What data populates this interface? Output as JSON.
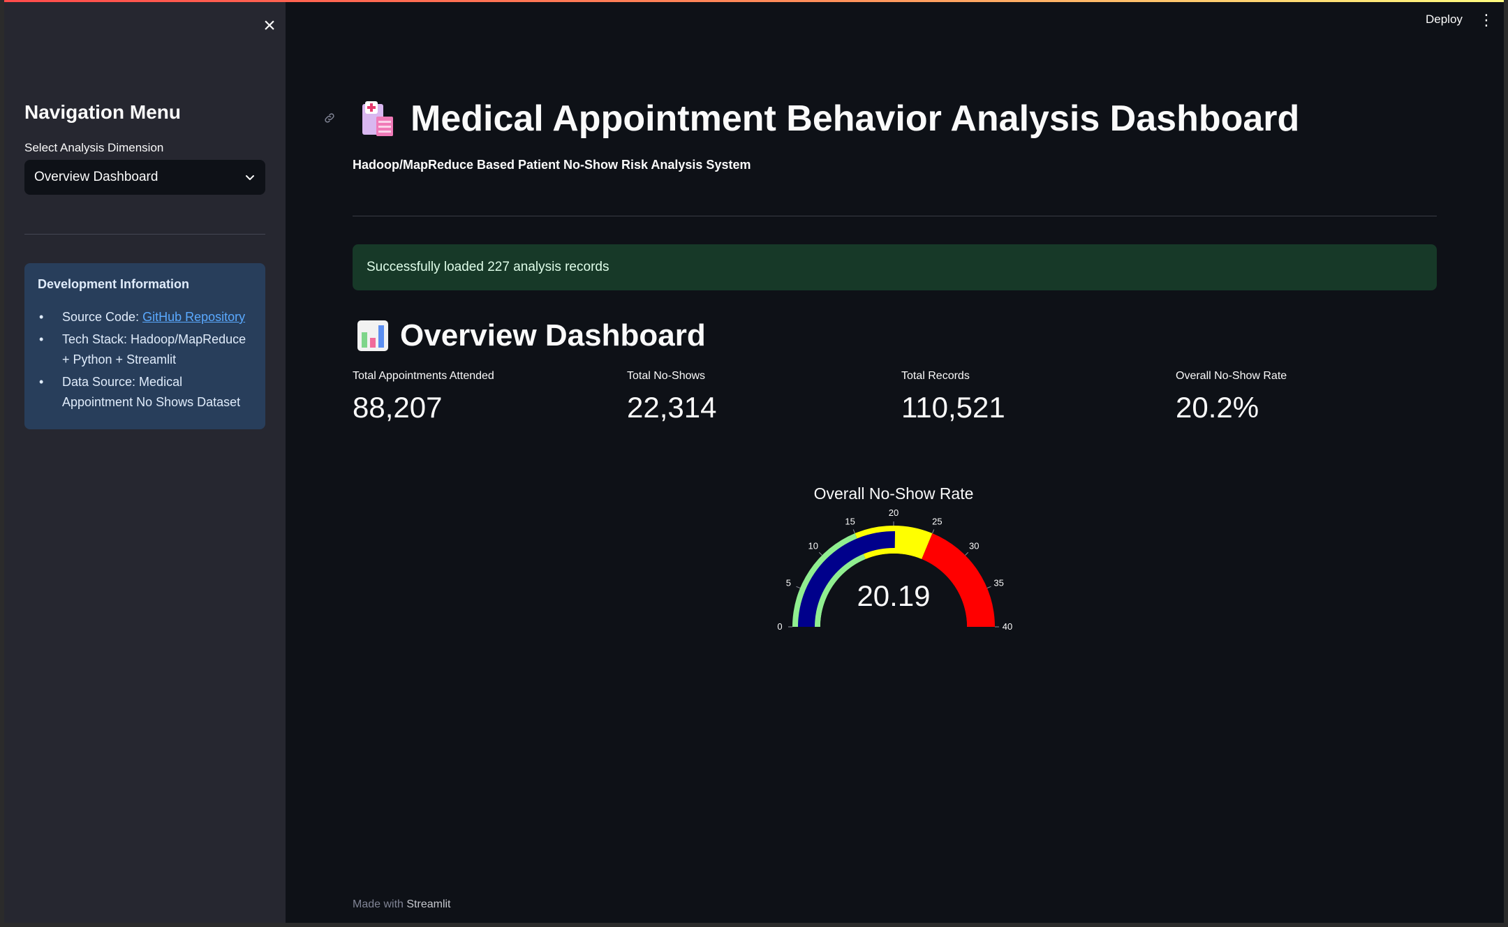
{
  "sidebar": {
    "close_icon": "×",
    "nav_title": "Navigation Menu",
    "select_label": "Select Analysis Dimension",
    "select_value": "Overview Dashboard",
    "info_title": "Development Information",
    "source_label": "Source Code: ",
    "source_link": "GitHub Repository",
    "tech_stack": "Tech Stack: Hadoop/MapReduce + Python + Streamlit",
    "data_source": "Data Source: Medical Appointment No Shows Dataset"
  },
  "header": {
    "deploy_label": "Deploy",
    "menu_icon": "⋮"
  },
  "main": {
    "title": "Medical Appointment Behavior Analysis Dashboard",
    "subtitle": "Hadoop/MapReduce Based Patient No-Show Risk Analysis System",
    "success_message": "Successfully loaded 227 analysis records",
    "section_title": "Overview Dashboard",
    "metrics": [
      {
        "label": "Total Appointments Attended",
        "value": "88,207"
      },
      {
        "label": "Total No-Shows",
        "value": "22,314"
      },
      {
        "label": "Total Records",
        "value": "110,521"
      },
      {
        "label": "Overall No-Show Rate",
        "value": "20.2%"
      }
    ]
  },
  "chart_data": {
    "type": "gauge",
    "title": "Overall No-Show Rate",
    "value": 20.19,
    "value_label": "20.19",
    "range": [
      0,
      40
    ],
    "ticks": [
      "0",
      "5",
      "10",
      "15",
      "20",
      "25",
      "30",
      "35",
      "40"
    ],
    "steps": [
      {
        "range": [
          0,
          15
        ],
        "color": "#90ee90"
      },
      {
        "range": [
          15,
          25
        ],
        "color": "#ffff00"
      },
      {
        "range": [
          25,
          40
        ],
        "color": "#ff0000"
      }
    ],
    "bar_color": "#00008b"
  },
  "footer": {
    "made_with": "Made with ",
    "brand": "Streamlit"
  }
}
